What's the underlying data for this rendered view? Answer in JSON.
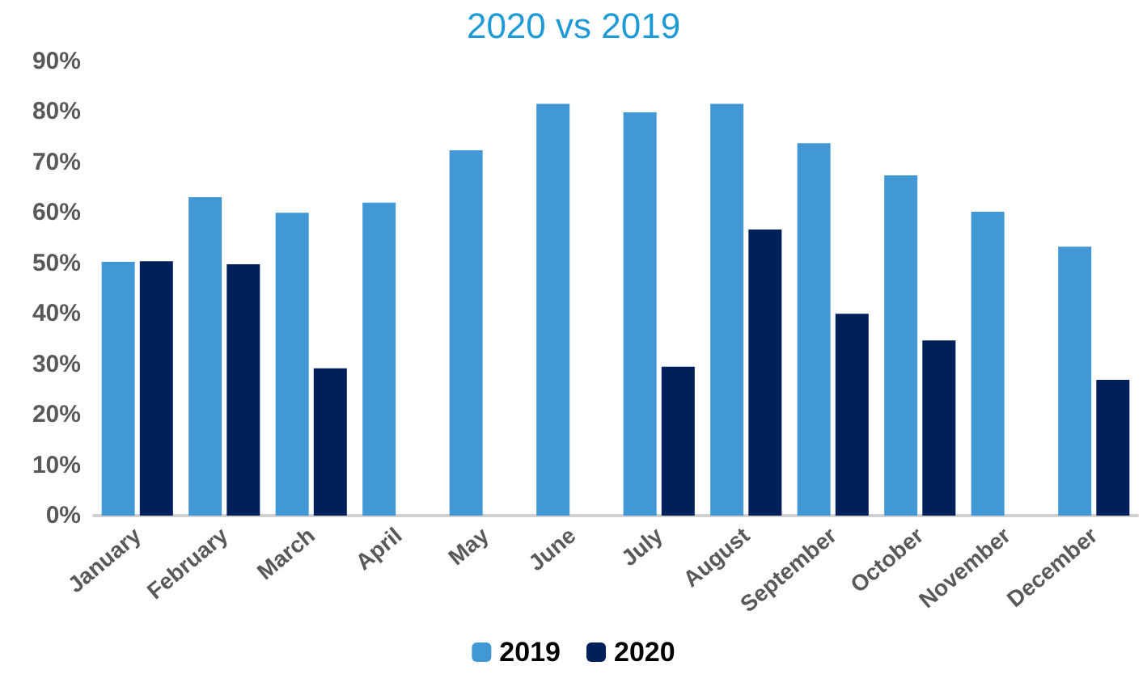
{
  "chart_data": {
    "type": "bar",
    "title": "2020 vs 2019",
    "categories": [
      "January",
      "February",
      "March",
      "April",
      "May",
      "June",
      "July",
      "August",
      "September",
      "October",
      "November",
      "December"
    ],
    "series": [
      {
        "name": "2019",
        "color": "#4298d5",
        "values": [
          50.3,
          63.1,
          60,
          62,
          72.4,
          81.6,
          79.9,
          81.6,
          73.8,
          67.4,
          60.2,
          53.3
        ]
      },
      {
        "name": "2020",
        "color": "#00205b",
        "values": [
          50.4,
          49.8,
          29.2,
          null,
          null,
          null,
          29.5,
          56.7,
          40,
          34.7,
          null,
          26.9
        ]
      }
    ],
    "ylim": [
      0,
      90
    ],
    "yticks": [
      {
        "value": 0,
        "label": "0%"
      },
      {
        "value": 10,
        "label": "10%"
      },
      {
        "value": 20,
        "label": "20%"
      },
      {
        "value": 30,
        "label": "30%"
      },
      {
        "value": 40,
        "label": "40%"
      },
      {
        "value": 50,
        "label": "50%"
      },
      {
        "value": 60,
        "label": "60%"
      },
      {
        "value": 70,
        "label": "70%"
      },
      {
        "value": 80,
        "label": "80%"
      },
      {
        "value": 90,
        "label": "90%"
      }
    ],
    "grid": false,
    "legend": "bottom"
  }
}
